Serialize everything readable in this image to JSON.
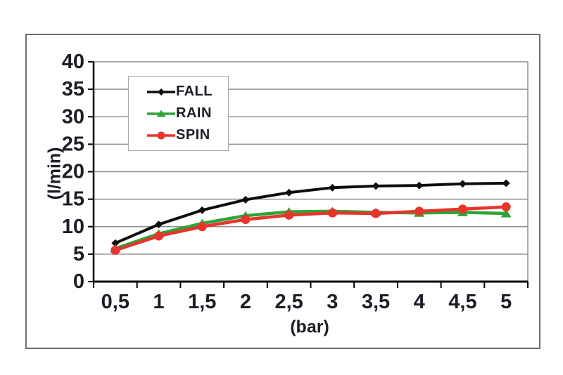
{
  "chart_data": {
    "type": "line",
    "x": [
      0.5,
      1,
      1.5,
      2,
      2.5,
      3,
      3.5,
      4,
      4.5,
      5
    ],
    "x_tick_labels": [
      "0,5",
      "1",
      "1,5",
      "2",
      "2,5",
      "3",
      "3,5",
      "4",
      "4,5",
      "5"
    ],
    "xlabel": "(bar)",
    "ylabel": "(l/min)",
    "ylim": [
      0,
      40
    ],
    "y_ticks": [
      0,
      5,
      10,
      15,
      20,
      25,
      30,
      35,
      40
    ],
    "grid": true,
    "legend_position": "upper-left-inside",
    "series": [
      {
        "name": "FALL",
        "marker": "diamond",
        "color": "#0d0d0d",
        "values": [
          7.0,
          10.4,
          13.0,
          14.9,
          16.2,
          17.1,
          17.4,
          17.5,
          17.8,
          17.9
        ]
      },
      {
        "name": "RAIN",
        "marker": "triangle",
        "color": "#2fa437",
        "values": [
          6.0,
          8.7,
          10.6,
          12.0,
          12.7,
          12.8,
          12.6,
          12.5,
          12.6,
          12.4
        ]
      },
      {
        "name": "SPIN",
        "marker": "circle",
        "color": "#e7342c",
        "values": [
          5.7,
          8.3,
          10.0,
          11.3,
          12.1,
          12.5,
          12.4,
          12.8,
          13.2,
          13.6
        ]
      }
    ]
  },
  "colors": {
    "grid": "#8f8f8f",
    "axis": "#000000",
    "text": "#1d1d26",
    "frame_border": "#6f6f6f",
    "legend_border": "#ababab",
    "background": "#ffffff"
  }
}
